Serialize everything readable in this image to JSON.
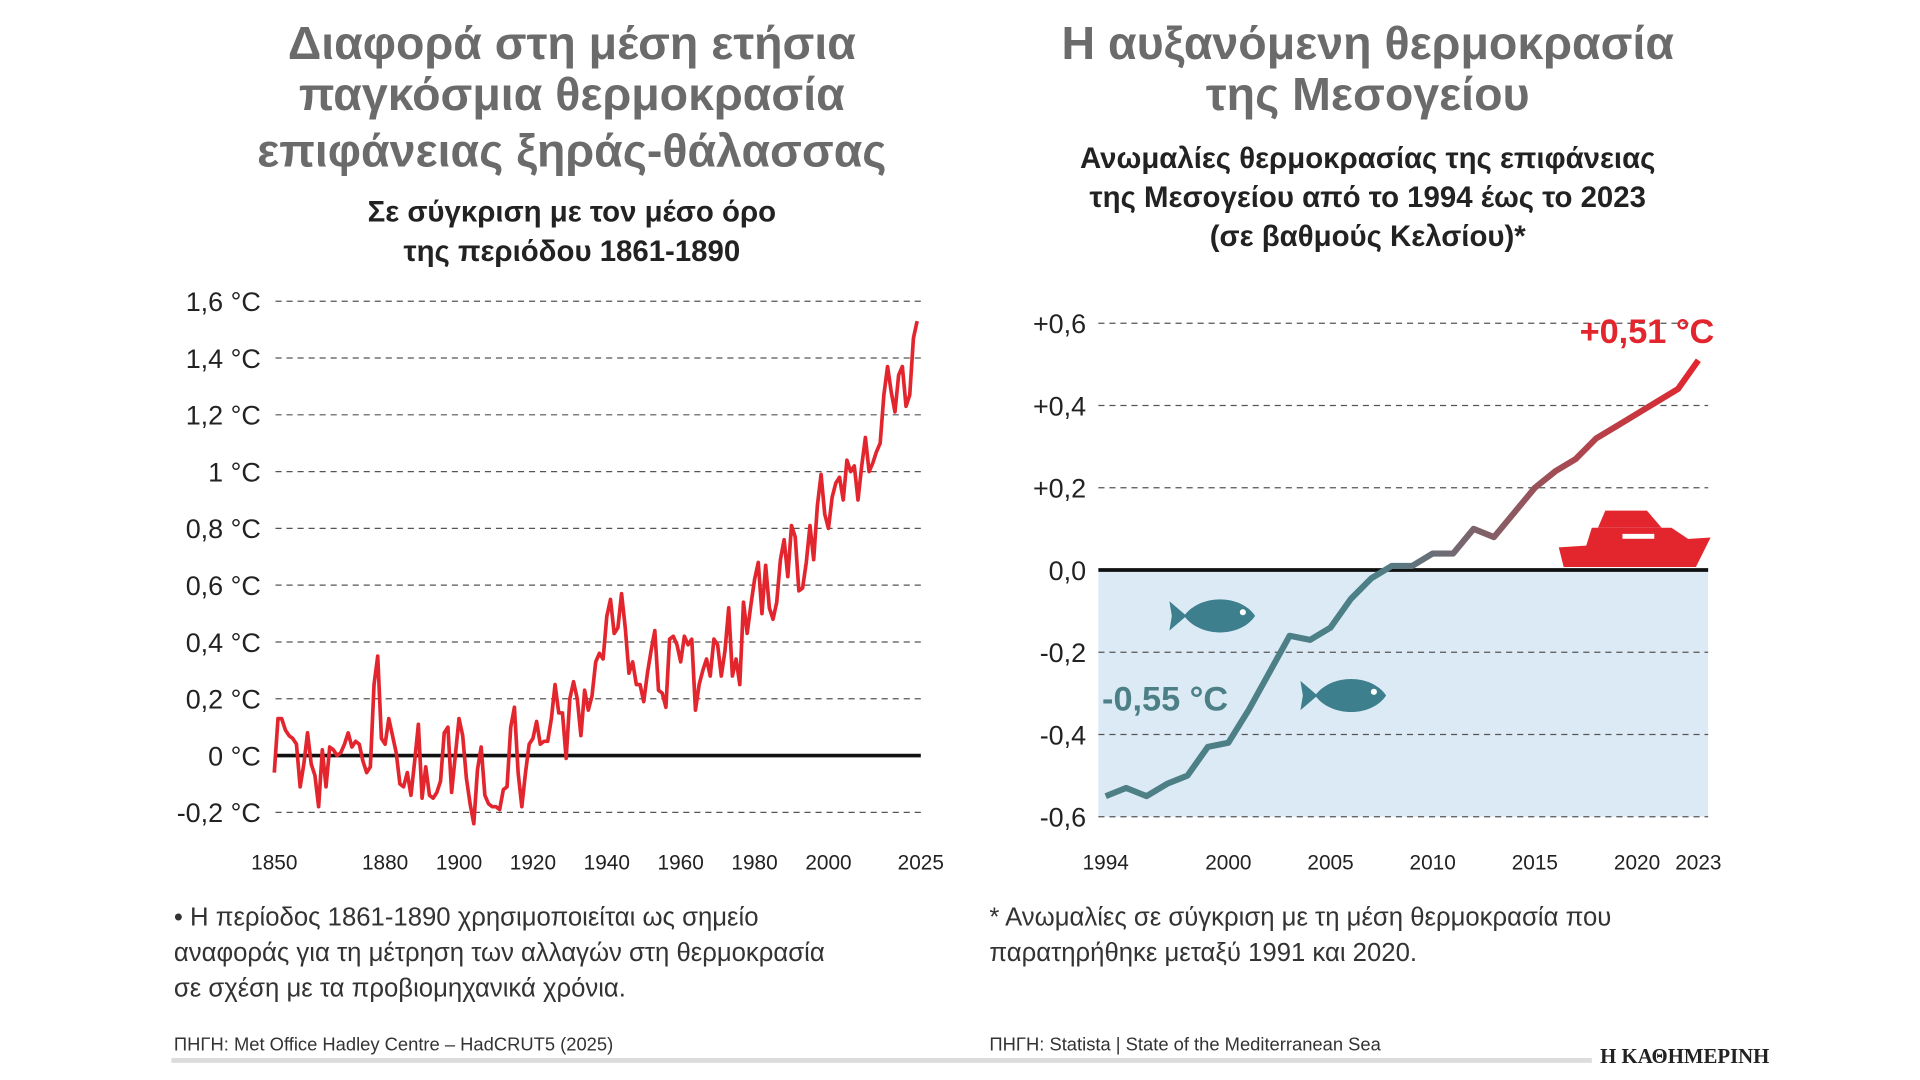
{
  "brand": "Η ΚΑΘΗΜΕΡΙΝΗ",
  "chart_data": [
    {
      "type": "line",
      "title": [
        "Διαφορά στη μέση ετήσια",
        "παγκόσμια θερμοκρασία",
        "επιφάνειας ξηράς-θάλασσας"
      ],
      "subtitle": [
        "Σε σύγκριση με τον μέσο όρο",
        "της περιόδου 1861-1890"
      ],
      "note": [
        "• Η περίοδος 1861-1890 χρησιμοποιείται ως σημείο",
        "αναφοράς για τη μέτρηση των αλλαγών στη θερμοκρασία",
        "σε σχέση με τα προβιομηχανικά χρόνια."
      ],
      "source": "ΠΗΓΗ: Met Office Hadley Centre – HadCRUT5 (2025)",
      "color": "#e3262e",
      "grid": true,
      "xlim": [
        1850,
        2025
      ],
      "xticks": [
        1850,
        1880,
        1900,
        1920,
        1940,
        1960,
        1980,
        2000,
        2025
      ],
      "ylim": [
        -0.25,
        1.6
      ],
      "yticks": [
        {
          "value": 1.6,
          "label": "1,6 °C"
        },
        {
          "value": 1.4,
          "label": "1,4 °C"
        },
        {
          "value": 1.2,
          "label": "1,2 °C"
        },
        {
          "value": 1,
          "label": "1 °C"
        },
        {
          "value": 0.8,
          "label": "0,8 °C"
        },
        {
          "value": 0.6,
          "label": "0,6 °C"
        },
        {
          "value": 0.4,
          "label": "0,4 °C"
        },
        {
          "value": 0.2,
          "label": "0,2 °C"
        },
        {
          "value": 0,
          "label": "0 °C"
        },
        {
          "value": -0.2,
          "label": "-0,2 °C"
        }
      ],
      "x": [
        1850,
        1851,
        1852,
        1853,
        1854,
        1855,
        1856,
        1857,
        1858,
        1859,
        1860,
        1861,
        1862,
        1863,
        1864,
        1865,
        1866,
        1867,
        1868,
        1869,
        1870,
        1871,
        1872,
        1873,
        1874,
        1875,
        1876,
        1877,
        1878,
        1879,
        1880,
        1881,
        1882,
        1883,
        1884,
        1885,
        1886,
        1887,
        1888,
        1889,
        1890,
        1891,
        1892,
        1893,
        1894,
        1895,
        1896,
        1897,
        1898,
        1899,
        1900,
        1901,
        1902,
        1903,
        1904,
        1905,
        1906,
        1907,
        1908,
        1909,
        1910,
        1911,
        1912,
        1913,
        1914,
        1915,
        1916,
        1917,
        1918,
        1919,
        1920,
        1921,
        1922,
        1923,
        1924,
        1925,
        1926,
        1927,
        1928,
        1929,
        1930,
        1931,
        1932,
        1933,
        1934,
        1935,
        1936,
        1937,
        1938,
        1939,
        1940,
        1941,
        1942,
        1943,
        1944,
        1945,
        1946,
        1947,
        1948,
        1949,
        1950,
        1951,
        1952,
        1953,
        1954,
        1955,
        1956,
        1957,
        1958,
        1959,
        1960,
        1961,
        1962,
        1963,
        1964,
        1965,
        1966,
        1967,
        1968,
        1969,
        1970,
        1971,
        1972,
        1973,
        1974,
        1975,
        1976,
        1977,
        1978,
        1979,
        1980,
        1981,
        1982,
        1983,
        1984,
        1985,
        1986,
        1987,
        1988,
        1989,
        1990,
        1991,
        1992,
        1993,
        1994,
        1995,
        1996,
        1997,
        1998,
        1999,
        2000,
        2001,
        2002,
        2003,
        2004,
        2005,
        2006,
        2007,
        2008,
        2009,
        2010,
        2011,
        2012,
        2013,
        2014,
        2015,
        2016,
        2017,
        2018,
        2019,
        2020,
        2021,
        2022,
        2023,
        2024
      ],
      "values": [
        -0.06,
        0.13,
        0.13,
        0.09,
        0.07,
        0.06,
        0.04,
        -0.11,
        -0.03,
        0.08,
        -0.03,
        -0.07,
        -0.18,
        0.02,
        -0.11,
        0.03,
        0.02,
        0.0,
        0.01,
        0.04,
        0.08,
        0.03,
        0.05,
        0.04,
        -0.02,
        -0.06,
        -0.04,
        0.25,
        0.35,
        0.06,
        0.04,
        0.13,
        0.07,
        0.01,
        -0.1,
        -0.11,
        -0.06,
        -0.14,
        -0.02,
        0.11,
        -0.15,
        -0.04,
        -0.14,
        -0.15,
        -0.13,
        -0.09,
        0.08,
        0.1,
        -0.13,
        0.0,
        0.13,
        0.07,
        -0.08,
        -0.17,
        -0.24,
        -0.05,
        0.03,
        -0.14,
        -0.17,
        -0.18,
        -0.18,
        -0.19,
        -0.12,
        -0.11,
        0.1,
        0.17,
        -0.06,
        -0.18,
        -0.06,
        0.04,
        0.06,
        0.12,
        0.04,
        0.05,
        0.05,
        0.13,
        0.25,
        0.15,
        0.15,
        -0.01,
        0.2,
        0.26,
        0.2,
        0.07,
        0.23,
        0.16,
        0.21,
        0.33,
        0.36,
        0.34,
        0.49,
        0.55,
        0.43,
        0.45,
        0.57,
        0.45,
        0.29,
        0.33,
        0.25,
        0.25,
        0.19,
        0.29,
        0.37,
        0.44,
        0.23,
        0.22,
        0.17,
        0.41,
        0.42,
        0.39,
        0.33,
        0.42,
        0.39,
        0.41,
        0.16,
        0.25,
        0.3,
        0.34,
        0.28,
        0.41,
        0.39,
        0.28,
        0.37,
        0.52,
        0.28,
        0.34,
        0.25,
        0.54,
        0.43,
        0.53,
        0.62,
        0.68,
        0.5,
        0.67,
        0.52,
        0.48,
        0.54,
        0.69,
        0.76,
        0.63,
        0.81,
        0.77,
        0.58,
        0.59,
        0.68,
        0.81,
        0.69,
        0.88,
        0.99,
        0.85,
        0.8,
        0.91,
        0.96,
        0.98,
        0.9,
        1.04,
        1.0,
        1.02,
        0.9,
        1.02,
        1.12,
        1.0,
        1.03,
        1.07,
        1.1,
        1.27,
        1.37,
        1.28,
        1.21,
        1.34,
        1.37,
        1.23,
        1.27,
        1.47,
        1.53
      ]
    },
    {
      "type": "line",
      "title": [
        "Η αυξανόμενη θερμοκρασία",
        "της Μεσογείου"
      ],
      "subtitle": [
        "Ανωμαλίες θερμοκρασίας της επιφάνειας",
        "της Μεσογείου από το 1994 έως το 2023",
        "(σε βαθμούς Κελσίου)*"
      ],
      "note": [
        "* Ανωμαλίες σε σύγκριση με τη μέση θερμοκρασία που",
        "παρατηρήθηκε μεταξύ 1991 και 2020."
      ],
      "source": "ΠΗΓΗ: Statista | State of the Mediterranean Sea",
      "gradient": [
        "#4d7f87",
        "#e3262e"
      ],
      "below_zero_fill": "#dceaf6",
      "grid": true,
      "xlim": [
        1994,
        2023
      ],
      "xticks": [
        1994,
        2000,
        2005,
        2010,
        2015,
        2020,
        2023
      ],
      "ylim": [
        -0.6,
        0.6
      ],
      "yticks": [
        {
          "value": 0.6,
          "label": "+0,6"
        },
        {
          "value": 0.4,
          "label": "+0,4"
        },
        {
          "value": 0.2,
          "label": "+0,2"
        },
        {
          "value": 0,
          "label": "0,0"
        },
        {
          "value": -0.2,
          "label": "-0,2"
        },
        {
          "value": -0.4,
          "label": "-0,4"
        },
        {
          "value": -0.6,
          "label": "-0,6"
        }
      ],
      "x": [
        1994,
        1995,
        1996,
        1997,
        1998,
        1999,
        2000,
        2001,
        2002,
        2003,
        2004,
        2005,
        2006,
        2007,
        2008,
        2009,
        2010,
        2011,
        2012,
        2013,
        2014,
        2015,
        2016,
        2017,
        2018,
        2019,
        2020,
        2021,
        2022,
        2023
      ],
      "values": [
        -0.55,
        -0.53,
        -0.55,
        -0.52,
        -0.5,
        -0.43,
        -0.42,
        -0.34,
        -0.25,
        -0.16,
        -0.17,
        -0.14,
        -0.07,
        -0.02,
        0.01,
        0.01,
        0.04,
        0.04,
        0.1,
        0.08,
        0.14,
        0.2,
        0.24,
        0.27,
        0.32,
        0.35,
        0.38,
        0.41,
        0.44,
        0.51
      ],
      "value_labels": [
        "-0,55 °C",
        null,
        null,
        null,
        null,
        null,
        null,
        null,
        null,
        null,
        null,
        null,
        null,
        null,
        null,
        null,
        null,
        null,
        null,
        null,
        null,
        null,
        null,
        null,
        null,
        null,
        null,
        null,
        null,
        "+0,51 °C"
      ]
    }
  ]
}
